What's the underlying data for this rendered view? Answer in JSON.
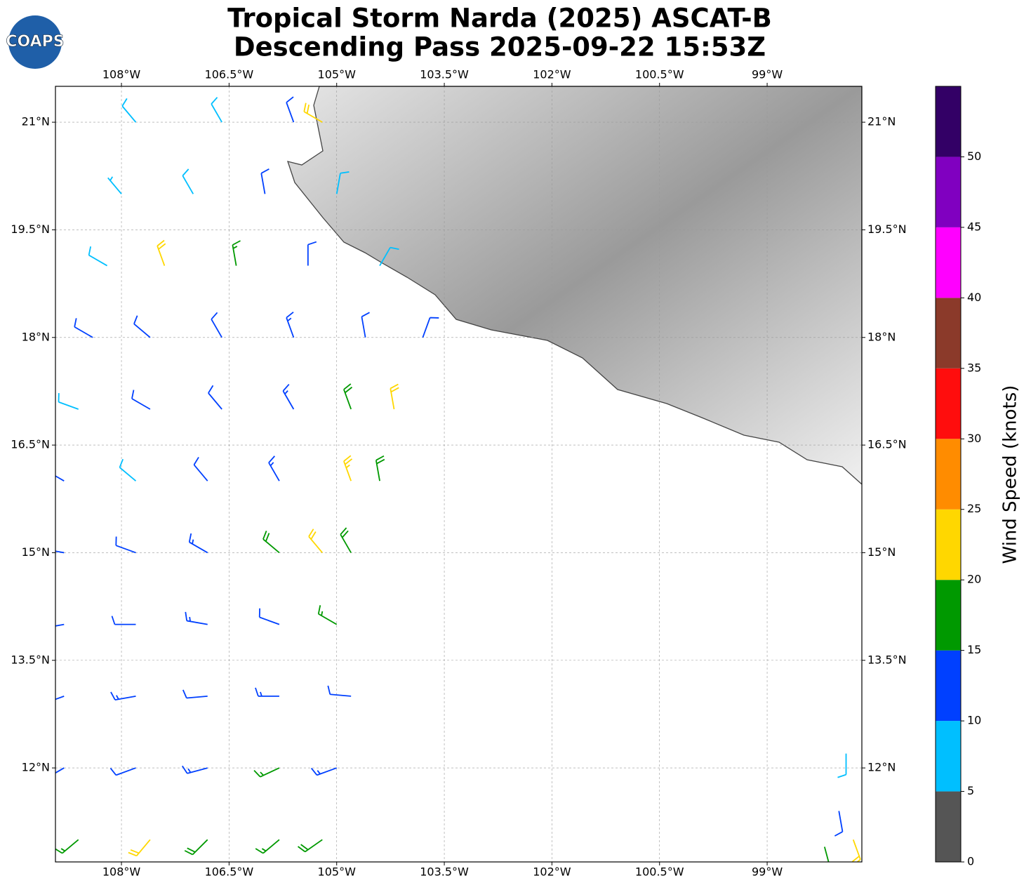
{
  "title": [
    "Tropical Storm Narda (2025) ASCAT-B",
    "Descending Pass 2025-09-22 15:53Z"
  ],
  "logo": "COAPS",
  "map": {
    "xlim": [
      -108.92,
      -97.68
    ],
    "ylim": [
      10.69,
      21.5
    ],
    "xticks": [
      {
        "value": -108,
        "label": "108°W"
      },
      {
        "value": -106.5,
        "label": "106.5°W"
      },
      {
        "value": -105,
        "label": "105°W"
      },
      {
        "value": -103.5,
        "label": "103.5°W"
      },
      {
        "value": -102,
        "label": "102°W"
      },
      {
        "value": -100.5,
        "label": "100.5°W"
      },
      {
        "value": -99,
        "label": "99°W"
      }
    ],
    "yticks": [
      {
        "value": 12,
        "label": "12°N"
      },
      {
        "value": 13.5,
        "label": "13.5°N"
      },
      {
        "value": 15,
        "label": "15°N"
      },
      {
        "value": 16.5,
        "label": "16.5°N"
      },
      {
        "value": 18,
        "label": "18°N"
      },
      {
        "value": 19.5,
        "label": "19.5°N"
      },
      {
        "value": 21,
        "label": "21°N"
      }
    ],
    "grid": true,
    "barbs": {
      "lon": [
        -107.8,
        -106.6,
        -105.6,
        -105.2,
        -108.0,
        -107.0,
        -106.0,
        -105.0,
        -108.2,
        -107.4,
        -106.4,
        -105.4,
        -104.4,
        -108.4,
        -107.6,
        -106.6,
        -105.6,
        -104.6,
        -103.8,
        -108.6,
        -107.6,
        -106.6,
        -105.6,
        -104.8,
        -104.2,
        -108.8,
        -107.8,
        -106.8,
        -105.8,
        -104.8,
        -104.4,
        -108.8,
        -107.8,
        -106.8,
        -105.8,
        -105.2,
        -104.8,
        -108.8,
        -107.8,
        -106.8,
        -105.8,
        -105.0,
        -108.8,
        -107.8,
        -106.8,
        -105.8,
        -104.8,
        -108.8,
        -107.8,
        -106.8,
        -105.8,
        -105.0,
        -108.6,
        -107.6,
        -106.8,
        -105.8,
        -105.2,
        -97.9,
        -98.0,
        -97.8,
        -98.2
      ],
      "lat": [
        21,
        21,
        21,
        21,
        20,
        20,
        20,
        20,
        19,
        19,
        19,
        19,
        19,
        18,
        18,
        18,
        18,
        18,
        18,
        17,
        17,
        17,
        17,
        17,
        17,
        16,
        16,
        16,
        16,
        16,
        16,
        15,
        15,
        15,
        15,
        15,
        15,
        14,
        14,
        14,
        14,
        14,
        13,
        13,
        13,
        13,
        13,
        12,
        12,
        12,
        12,
        12,
        11,
        11,
        11,
        11,
        11,
        12.2,
        11.4,
        11.0,
        10.9
      ],
      "speed": [
        8,
        8,
        12,
        22,
        7,
        9,
        12,
        8,
        9,
        22,
        17,
        12,
        8,
        12,
        10,
        12,
        13,
        12,
        10,
        8,
        11,
        12,
        13,
        18,
        22,
        12,
        8,
        12,
        13,
        23,
        18,
        13,
        12,
        13,
        18,
        22,
        18,
        13,
        12,
        13,
        12,
        17,
        12,
        13,
        12,
        13,
        12,
        11,
        12,
        13,
        17,
        13,
        16,
        22,
        18,
        17,
        18,
        8,
        12,
        22,
        17
      ],
      "direction": [
        320,
        330,
        340,
        300,
        320,
        330,
        350,
        10,
        300,
        340,
        350,
        0,
        30,
        300,
        310,
        330,
        340,
        350,
        20,
        290,
        300,
        320,
        330,
        340,
        350,
        300,
        310,
        320,
        330,
        340,
        350,
        280,
        290,
        300,
        310,
        320,
        330,
        260,
        270,
        280,
        290,
        300,
        250,
        260,
        265,
        270,
        275,
        240,
        250,
        255,
        245,
        250,
        230,
        220,
        225,
        230,
        235,
        180,
        170,
        160,
        165
      ]
    }
  },
  "colorbar": {
    "label": "Wind Speed (knots)",
    "bounds": [
      0,
      5,
      10,
      15,
      20,
      25,
      30,
      35,
      40,
      45,
      50,
      55
    ],
    "colors": [
      "#555555",
      "#00bfff",
      "#0040ff",
      "#009900",
      "#ffd700",
      "#ff8c00",
      "#ff0d0d",
      "#8b3a2a",
      "#ff00ff",
      "#8000c0",
      "#330066"
    ],
    "ticks": [
      0,
      5,
      10,
      15,
      20,
      25,
      30,
      35,
      40,
      45,
      50
    ]
  }
}
